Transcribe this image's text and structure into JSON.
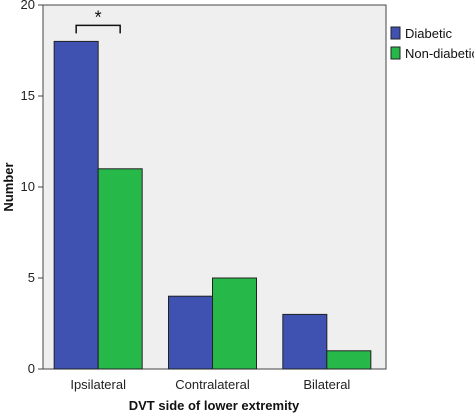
{
  "chart_data": {
    "type": "bar",
    "title": "",
    "xlabel": "DVT side of lower extremity",
    "ylabel": "Number",
    "categories": [
      "Ipsilateral",
      "Contralateral",
      "Bilateral"
    ],
    "series": [
      {
        "name": "Diabetic",
        "color": "#3f51b1",
        "values": [
          18,
          4,
          3
        ]
      },
      {
        "name": "Non-diabetic",
        "color": "#27b84a",
        "values": [
          11,
          5,
          1
        ]
      }
    ],
    "ylim": [
      0,
      20
    ],
    "yticks": [
      0,
      5,
      10,
      15,
      20
    ],
    "grid": false,
    "plot_background": "#efefef",
    "legend_position": "right",
    "annotation": {
      "text": "*",
      "type": "significance-bracket",
      "category": "Ipsilateral"
    }
  }
}
